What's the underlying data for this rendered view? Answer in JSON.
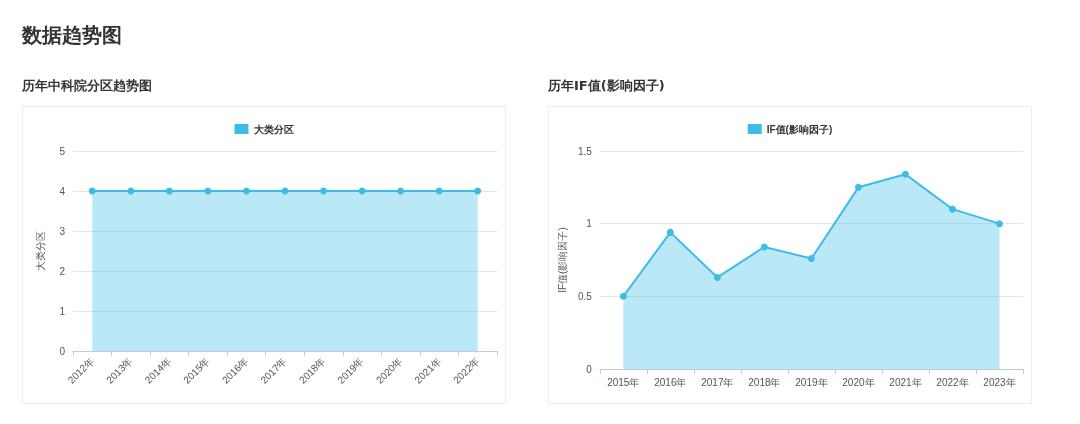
{
  "chart_data": [
    {
      "type": "area",
      "title": "历年中科院分区趋势图",
      "annotations": [
        "数据趋势图"
      ],
      "ylabel": "大类分区",
      "categories": [
        "2012年",
        "2013年",
        "2014年",
        "2015年",
        "2016年",
        "2017年",
        "2018年",
        "2019年",
        "2020年",
        "2021年",
        "2022年"
      ],
      "series": [
        {
          "name": "大类分区",
          "color": "#3dbde6",
          "values": [
            4,
            4,
            4,
            4,
            4,
            4,
            4,
            4,
            4,
            4,
            4
          ]
        }
      ],
      "ylim": [
        0,
        5
      ],
      "yticks": [
        0,
        1,
        2,
        3,
        4,
        5
      ],
      "grid": "y",
      "legend": "top",
      "marker": "circle"
    },
    {
      "type": "area",
      "title": "历年IF值(影响因子)",
      "ylabel": "IF值(影响因子)",
      "categories": [
        "2015年",
        "2016年",
        "2017年",
        "2018年",
        "2019年",
        "2020年",
        "2021年",
        "2022年",
        "2023年"
      ],
      "series": [
        {
          "name": "IF值(影响因子)",
          "color": "#3dbde6",
          "values": [
            0.5,
            0.94,
            0.63,
            0.84,
            0.76,
            1.25,
            1.34,
            1.1,
            1.0
          ]
        }
      ],
      "ylim": [
        0,
        1.5
      ],
      "yticks": [
        0,
        0.5,
        1,
        1.5
      ],
      "grid": "y",
      "legend": "top",
      "marker": "circle"
    }
  ]
}
